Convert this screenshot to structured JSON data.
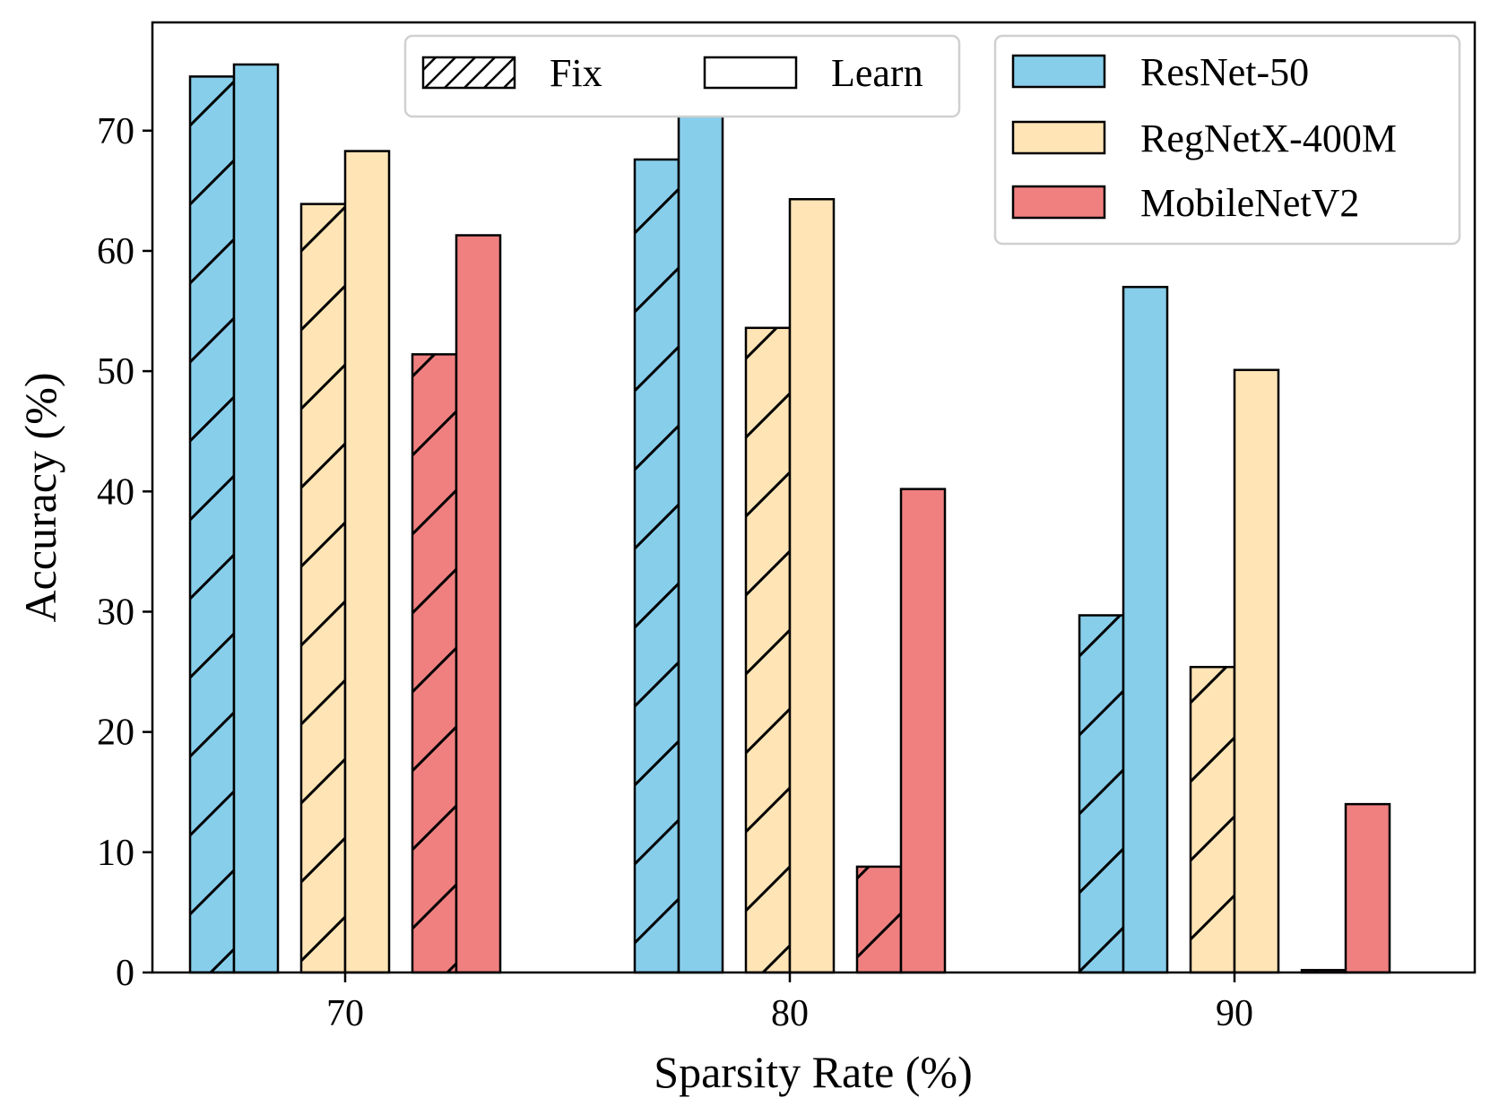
{
  "chart_data": {
    "type": "bar",
    "title": "",
    "xlabel": "Sparsity Rate (%)",
    "ylabel": "Accuracy (%)",
    "categories": [
      "70",
      "80",
      "90"
    ],
    "ylim": [
      0,
      79
    ],
    "yticks": [
      0,
      10,
      20,
      30,
      40,
      50,
      60,
      70
    ],
    "grid": false,
    "models": [
      {
        "name": "ResNet-50",
        "color": "#87CEEB",
        "fix": [
          74.5,
          67.6,
          29.7
        ],
        "learn": [
          75.5,
          71.3,
          57.0
        ]
      },
      {
        "name": "RegNetX-400M",
        "color": "#FFE4B5",
        "fix": [
          63.9,
          53.6,
          25.4
        ],
        "learn": [
          68.3,
          64.3,
          50.1
        ]
      },
      {
        "name": "MobileNetV2",
        "color": "#F08080",
        "fix": [
          51.4,
          8.8,
          0.2
        ],
        "learn": [
          61.3,
          40.2,
          14.0
        ]
      }
    ],
    "method_legend": {
      "placement": "top-center",
      "items": [
        {
          "name": "Fix",
          "hatch": true
        },
        {
          "name": "Learn",
          "hatch": false
        }
      ]
    },
    "model_legend_placement": "top-right"
  }
}
